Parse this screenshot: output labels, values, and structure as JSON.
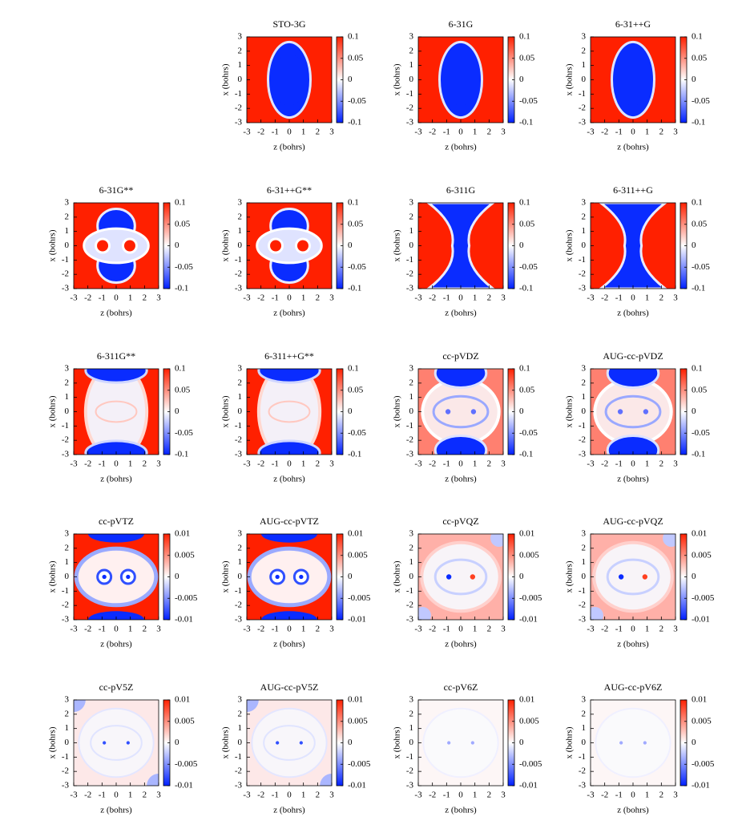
{
  "chart_data": [
    {
      "type": "heatmap",
      "title": "STO-3G",
      "xlabel": "z (bohrs)",
      "ylabel": "x (bohrs)",
      "xlim": [
        -3,
        3
      ],
      "ylim": [
        -3,
        3
      ],
      "xticks": [
        -3,
        -2,
        -1,
        0,
        1,
        2,
        3
      ],
      "yticks": [
        -3,
        -2,
        -1,
        0,
        1,
        2,
        3
      ],
      "clim": [
        -0.1,
        0.1
      ],
      "cticks": [
        -0.1,
        -0.05,
        0,
        0.05,
        0.1
      ]
    },
    {
      "type": "heatmap",
      "title": "6-31G",
      "xlabel": "z (bohrs)",
      "ylabel": "x (bohrs)",
      "xlim": [
        -3,
        3
      ],
      "ylim": [
        -3,
        3
      ],
      "xticks": [
        -3,
        -2,
        -1,
        0,
        1,
        2,
        3
      ],
      "yticks": [
        -3,
        -2,
        -1,
        0,
        1,
        2,
        3
      ],
      "clim": [
        -0.1,
        0.1
      ],
      "cticks": [
        -0.1,
        -0.05,
        0,
        0.05,
        0.1
      ]
    },
    {
      "type": "heatmap",
      "title": "6-31++G",
      "xlabel": "z (bohrs)",
      "ylabel": "x (bohrs)",
      "xlim": [
        -3,
        3
      ],
      "ylim": [
        -3,
        3
      ],
      "xticks": [
        -3,
        -2,
        -1,
        0,
        1,
        2,
        3
      ],
      "yticks": [
        -3,
        -2,
        -1,
        0,
        1,
        2,
        3
      ],
      "clim": [
        -0.1,
        0.1
      ],
      "cticks": [
        -0.1,
        -0.05,
        0,
        0.05,
        0.1
      ]
    },
    {
      "type": "heatmap",
      "title": "6-31G**",
      "xlabel": "z (bohrs)",
      "ylabel": "x (bohrs)",
      "xlim": [
        -3,
        3
      ],
      "ylim": [
        -3,
        3
      ],
      "xticks": [
        -3,
        -2,
        -1,
        0,
        1,
        2,
        3
      ],
      "yticks": [
        -3,
        -2,
        -1,
        0,
        1,
        2,
        3
      ],
      "clim": [
        -0.1,
        0.1
      ],
      "cticks": [
        -0.1,
        -0.05,
        0,
        0.05,
        0.1
      ]
    },
    {
      "type": "heatmap",
      "title": "6-31++G**",
      "xlabel": "z (bohrs)",
      "ylabel": "x (bohrs)",
      "xlim": [
        -3,
        3
      ],
      "ylim": [
        -3,
        3
      ],
      "xticks": [
        -3,
        -2,
        -1,
        0,
        1,
        2,
        3
      ],
      "yticks": [
        -3,
        -2,
        -1,
        0,
        1,
        2,
        3
      ],
      "clim": [
        -0.1,
        0.1
      ],
      "cticks": [
        -0.1,
        -0.05,
        0,
        0.05,
        0.1
      ]
    },
    {
      "type": "heatmap",
      "title": "6-311G",
      "xlabel": "z (bohrs)",
      "ylabel": "x (bohrs)",
      "xlim": [
        -3,
        3
      ],
      "ylim": [
        -3,
        3
      ],
      "xticks": [
        -3,
        -2,
        -1,
        0,
        1,
        2,
        3
      ],
      "yticks": [
        -3,
        -2,
        -1,
        0,
        1,
        2,
        3
      ],
      "clim": [
        -0.1,
        0.1
      ],
      "cticks": [
        -0.1,
        -0.05,
        0,
        0.05,
        0.1
      ]
    },
    {
      "type": "heatmap",
      "title": "6-311++G",
      "xlabel": "z (bohrs)",
      "ylabel": "x (bohrs)",
      "xlim": [
        -3,
        3
      ],
      "ylim": [
        -3,
        3
      ],
      "xticks": [
        -3,
        -2,
        -1,
        0,
        1,
        2,
        3
      ],
      "yticks": [
        -3,
        -2,
        -1,
        0,
        1,
        2,
        3
      ],
      "clim": [
        -0.1,
        0.1
      ],
      "cticks": [
        -0.1,
        -0.05,
        0,
        0.05,
        0.1
      ]
    },
    {
      "type": "heatmap",
      "title": "6-311G**",
      "xlabel": "z (bohrs)",
      "ylabel": "x (bohrs)",
      "xlim": [
        -3,
        3
      ],
      "ylim": [
        -3,
        3
      ],
      "xticks": [
        -3,
        -2,
        -1,
        0,
        1,
        2,
        3
      ],
      "yticks": [
        -3,
        -2,
        -1,
        0,
        1,
        2,
        3
      ],
      "clim": [
        -0.1,
        0.1
      ],
      "cticks": [
        -0.1,
        -0.05,
        0,
        0.05,
        0.1
      ]
    },
    {
      "type": "heatmap",
      "title": "6-311++G**",
      "xlabel": "z (bohrs)",
      "ylabel": "x (bohrs)",
      "xlim": [
        -3,
        3
      ],
      "ylim": [
        -3,
        3
      ],
      "xticks": [
        -3,
        -2,
        -1,
        0,
        1,
        2,
        3
      ],
      "yticks": [
        -3,
        -2,
        -1,
        0,
        1,
        2,
        3
      ],
      "clim": [
        -0.1,
        0.1
      ],
      "cticks": [
        -0.1,
        -0.05,
        0,
        0.05,
        0.1
      ]
    },
    {
      "type": "heatmap",
      "title": "cc-pVDZ",
      "xlabel": "z (bohrs)",
      "ylabel": "x (bohrs)",
      "xlim": [
        -3,
        3
      ],
      "ylim": [
        -3,
        3
      ],
      "xticks": [
        -3,
        -2,
        -1,
        0,
        1,
        2,
        3
      ],
      "yticks": [
        -3,
        -2,
        -1,
        0,
        1,
        2,
        3
      ],
      "clim": [
        -0.1,
        0.1
      ],
      "cticks": [
        -0.1,
        -0.05,
        0,
        0.05,
        0.1
      ]
    },
    {
      "type": "heatmap",
      "title": "AUG-cc-pVDZ",
      "xlabel": "z (bohrs)",
      "ylabel": "x (bohrs)",
      "xlim": [
        -3,
        3
      ],
      "ylim": [
        -3,
        3
      ],
      "xticks": [
        -3,
        -2,
        -1,
        0,
        1,
        2,
        3
      ],
      "yticks": [
        -3,
        -2,
        -1,
        0,
        1,
        2,
        3
      ],
      "clim": [
        -0.1,
        0.1
      ],
      "cticks": [
        -0.1,
        -0.05,
        0,
        0.05,
        0.1
      ]
    },
    {
      "type": "heatmap",
      "title": "cc-pVTZ",
      "xlabel": "z (bohrs)",
      "ylabel": "x (bohrs)",
      "xlim": [
        -3,
        3
      ],
      "ylim": [
        -3,
        3
      ],
      "xticks": [
        -3,
        -2,
        -1,
        0,
        1,
        2,
        3
      ],
      "yticks": [
        -3,
        -2,
        -1,
        0,
        1,
        2,
        3
      ],
      "clim": [
        -0.01,
        0.01
      ],
      "cticks": [
        -0.01,
        -0.005,
        0,
        0.005,
        0.01
      ]
    },
    {
      "type": "heatmap",
      "title": "AUG-cc-pVTZ",
      "xlabel": "z (bohrs)",
      "ylabel": "x (bohrs)",
      "xlim": [
        -3,
        3
      ],
      "ylim": [
        -3,
        3
      ],
      "xticks": [
        -3,
        -2,
        -1,
        0,
        1,
        2,
        3
      ],
      "yticks": [
        -3,
        -2,
        -1,
        0,
        1,
        2,
        3
      ],
      "clim": [
        -0.01,
        0.01
      ],
      "cticks": [
        -0.01,
        -0.005,
        0,
        0.005,
        0.01
      ]
    },
    {
      "type": "heatmap",
      "title": "cc-pVQZ",
      "xlabel": "z (bohrs)",
      "ylabel": "x (bohrs)",
      "xlim": [
        -3,
        3
      ],
      "ylim": [
        -3,
        3
      ],
      "xticks": [
        -3,
        -2,
        -1,
        0,
        1,
        2,
        3
      ],
      "yticks": [
        -3,
        -2,
        -1,
        0,
        1,
        2,
        3
      ],
      "clim": [
        -0.01,
        0.01
      ],
      "cticks": [
        -0.01,
        -0.005,
        0,
        0.005,
        0.01
      ]
    },
    {
      "type": "heatmap",
      "title": "AUG-cc-pVQZ",
      "xlabel": "z (bohrs)",
      "ylabel": "x (bohrs)",
      "xlim": [
        -3,
        3
      ],
      "ylim": [
        -3,
        3
      ],
      "xticks": [
        -3,
        -2,
        -1,
        0,
        1,
        2,
        3
      ],
      "yticks": [
        -3,
        -2,
        -1,
        0,
        1,
        2,
        3
      ],
      "clim": [
        -0.01,
        0.01
      ],
      "cticks": [
        -0.01,
        -0.005,
        0,
        0.005,
        0.01
      ]
    },
    {
      "type": "heatmap",
      "title": "cc-pV5Z",
      "xlabel": "z (bohrs)",
      "ylabel": "x (bohrs)",
      "xlim": [
        -3,
        3
      ],
      "ylim": [
        -3,
        3
      ],
      "xticks": [
        -3,
        -2,
        -1,
        0,
        1,
        2,
        3
      ],
      "yticks": [
        -3,
        -2,
        -1,
        0,
        1,
        2,
        3
      ],
      "clim": [
        -0.01,
        0.01
      ],
      "cticks": [
        -0.01,
        -0.005,
        0,
        0.005,
        0.01
      ]
    },
    {
      "type": "heatmap",
      "title": "AUG-cc-pV5Z",
      "xlabel": "z (bohrs)",
      "ylabel": "x (bohrs)",
      "xlim": [
        -3,
        3
      ],
      "ylim": [
        -3,
        3
      ],
      "xticks": [
        -3,
        -2,
        -1,
        0,
        1,
        2,
        3
      ],
      "yticks": [
        -3,
        -2,
        -1,
        0,
        1,
        2,
        3
      ],
      "clim": [
        -0.01,
        0.01
      ],
      "cticks": [
        -0.01,
        -0.005,
        0,
        0.005,
        0.01
      ]
    },
    {
      "type": "heatmap",
      "title": "cc-pV6Z",
      "xlabel": "z (bohrs)",
      "ylabel": "x (bohrs)",
      "xlim": [
        -3,
        3
      ],
      "ylim": [
        -3,
        3
      ],
      "xticks": [
        -3,
        -2,
        -1,
        0,
        1,
        2,
        3
      ],
      "yticks": [
        -3,
        -2,
        -1,
        0,
        1,
        2,
        3
      ],
      "clim": [
        -0.01,
        0.01
      ],
      "cticks": [
        -0.01,
        -0.005,
        0,
        0.005,
        0.01
      ]
    },
    {
      "type": "heatmap",
      "title": "AUG-cc-pV6Z",
      "xlabel": "z (bohrs)",
      "ylabel": "x (bohrs)",
      "xlim": [
        -3,
        3
      ],
      "ylim": [
        -3,
        3
      ],
      "xticks": [
        -3,
        -2,
        -1,
        0,
        1,
        2,
        3
      ],
      "yticks": [
        -3,
        -2,
        -1,
        0,
        1,
        2,
        3
      ],
      "clim": [
        -0.01,
        0.01
      ],
      "cticks": [
        -0.01,
        -0.005,
        0,
        0.005,
        0.01
      ]
    }
  ]
}
